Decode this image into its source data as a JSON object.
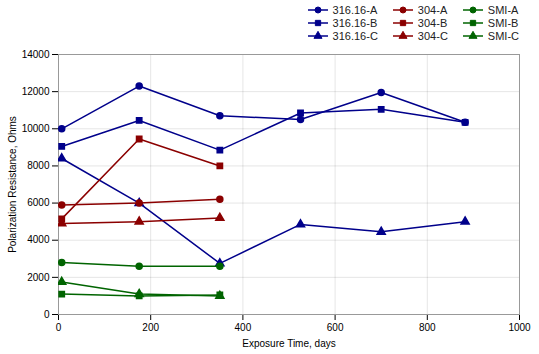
{
  "chart_data": {
    "type": "line",
    "xlabel": "Exposure Time, days",
    "ylabel": "Polarization Resistance, Ohms",
    "xlim": [
      0,
      1000
    ],
    "ylim": [
      0,
      14000
    ],
    "xticks": [
      0,
      200,
      400,
      600,
      800,
      1000
    ],
    "yticks": [
      0,
      2000,
      4000,
      6000,
      8000,
      10000,
      12000,
      14000
    ],
    "grid": true,
    "legend": "upper right",
    "series": [
      {
        "name": "316.16-A",
        "color": "#00008B",
        "marker": "circle",
        "line_style": "solid",
        "x": [
          7,
          175,
          350,
          525,
          700,
          882
        ],
        "values": [
          10000,
          12300,
          10700,
          10500,
          11950,
          10350
        ]
      },
      {
        "name": "316.16-B",
        "color": "#00008B",
        "marker": "square",
        "line_style": "solid",
        "x": [
          7,
          175,
          350,
          525,
          700,
          882
        ],
        "values": [
          9050,
          10450,
          8850,
          10850,
          11050,
          10350
        ]
      },
      {
        "name": "316.16-C",
        "color": "#00008B",
        "marker": "triangle",
        "line_style": "solid",
        "x": [
          7,
          175,
          350,
          525,
          700,
          882
        ],
        "values": [
          8400,
          6000,
          2750,
          4850,
          4450,
          5000
        ]
      },
      {
        "name": "304-A",
        "color": "#8B0000",
        "marker": "circle",
        "line_style": "solid",
        "x": [
          7,
          175,
          350
        ],
        "values": [
          5900,
          6000,
          6200
        ]
      },
      {
        "name": "304-B",
        "color": "#8B0000",
        "marker": "square",
        "line_style": "solid",
        "x": [
          7,
          175,
          350
        ],
        "values": [
          5150,
          9450,
          8000
        ]
      },
      {
        "name": "304-C",
        "color": "#8B0000",
        "marker": "triangle",
        "line_style": "solid",
        "x": [
          7,
          175,
          350
        ],
        "values": [
          4900,
          5000,
          5200
        ]
      },
      {
        "name": "SMI-A",
        "color": "#006400",
        "marker": "circle",
        "line_style": "solid",
        "x": [
          7,
          175,
          350
        ],
        "values": [
          2800,
          2600,
          2600
        ]
      },
      {
        "name": "SMI-B",
        "color": "#006400",
        "marker": "square",
        "line_style": "solid",
        "x": [
          7,
          175,
          350
        ],
        "values": [
          1100,
          1000,
          1050
        ]
      },
      {
        "name": "SMI-C",
        "color": "#006400",
        "marker": "triangle",
        "line_style": "solid",
        "x": [
          7,
          175,
          350
        ],
        "values": [
          1750,
          1100,
          1000
        ]
      }
    ]
  }
}
